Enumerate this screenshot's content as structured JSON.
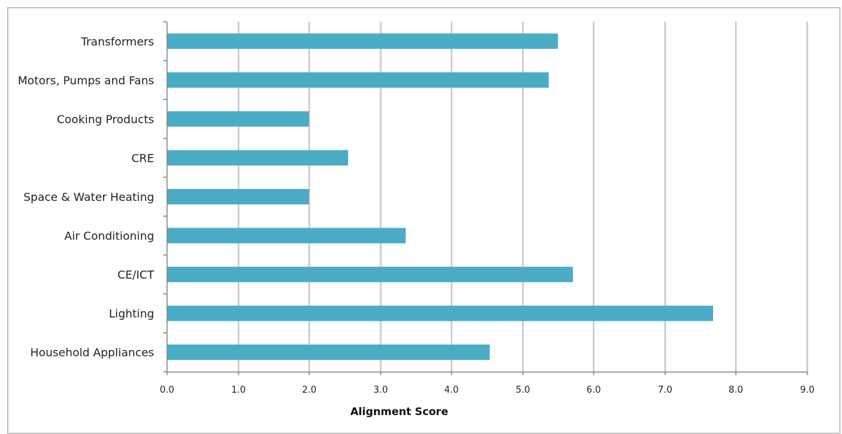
{
  "chart_data": {
    "type": "bar",
    "orientation": "horizontal",
    "categories": [
      "Transformers",
      "Motors, Pumps and Fans",
      "Cooking Products",
      "CRE",
      "Space & Water Heating",
      "Air Conditioning",
      "CE/ICT",
      "Lighting",
      "Household Appliances"
    ],
    "series": [
      {
        "values": [
          5.5,
          5.37,
          2.0,
          2.55,
          2.0,
          3.36,
          5.71,
          7.68,
          4.54
        ],
        "color": "#4bacc6"
      }
    ],
    "title": "",
    "xlabel": "Alignment Score",
    "ylabel": "",
    "xlim": [
      0,
      9
    ],
    "xticks": [
      0,
      1,
      2,
      3,
      4,
      5,
      6,
      7,
      8,
      9
    ],
    "xtick_labels": [
      "0.0",
      "1.0",
      "2.0",
      "3.0",
      "4.0",
      "5.0",
      "6.0",
      "7.0",
      "8.0",
      "9.0"
    ],
    "grid": "vertical",
    "grid_color": "#c0c0c0",
    "axis_color": "#888888",
    "legend": "none"
  }
}
